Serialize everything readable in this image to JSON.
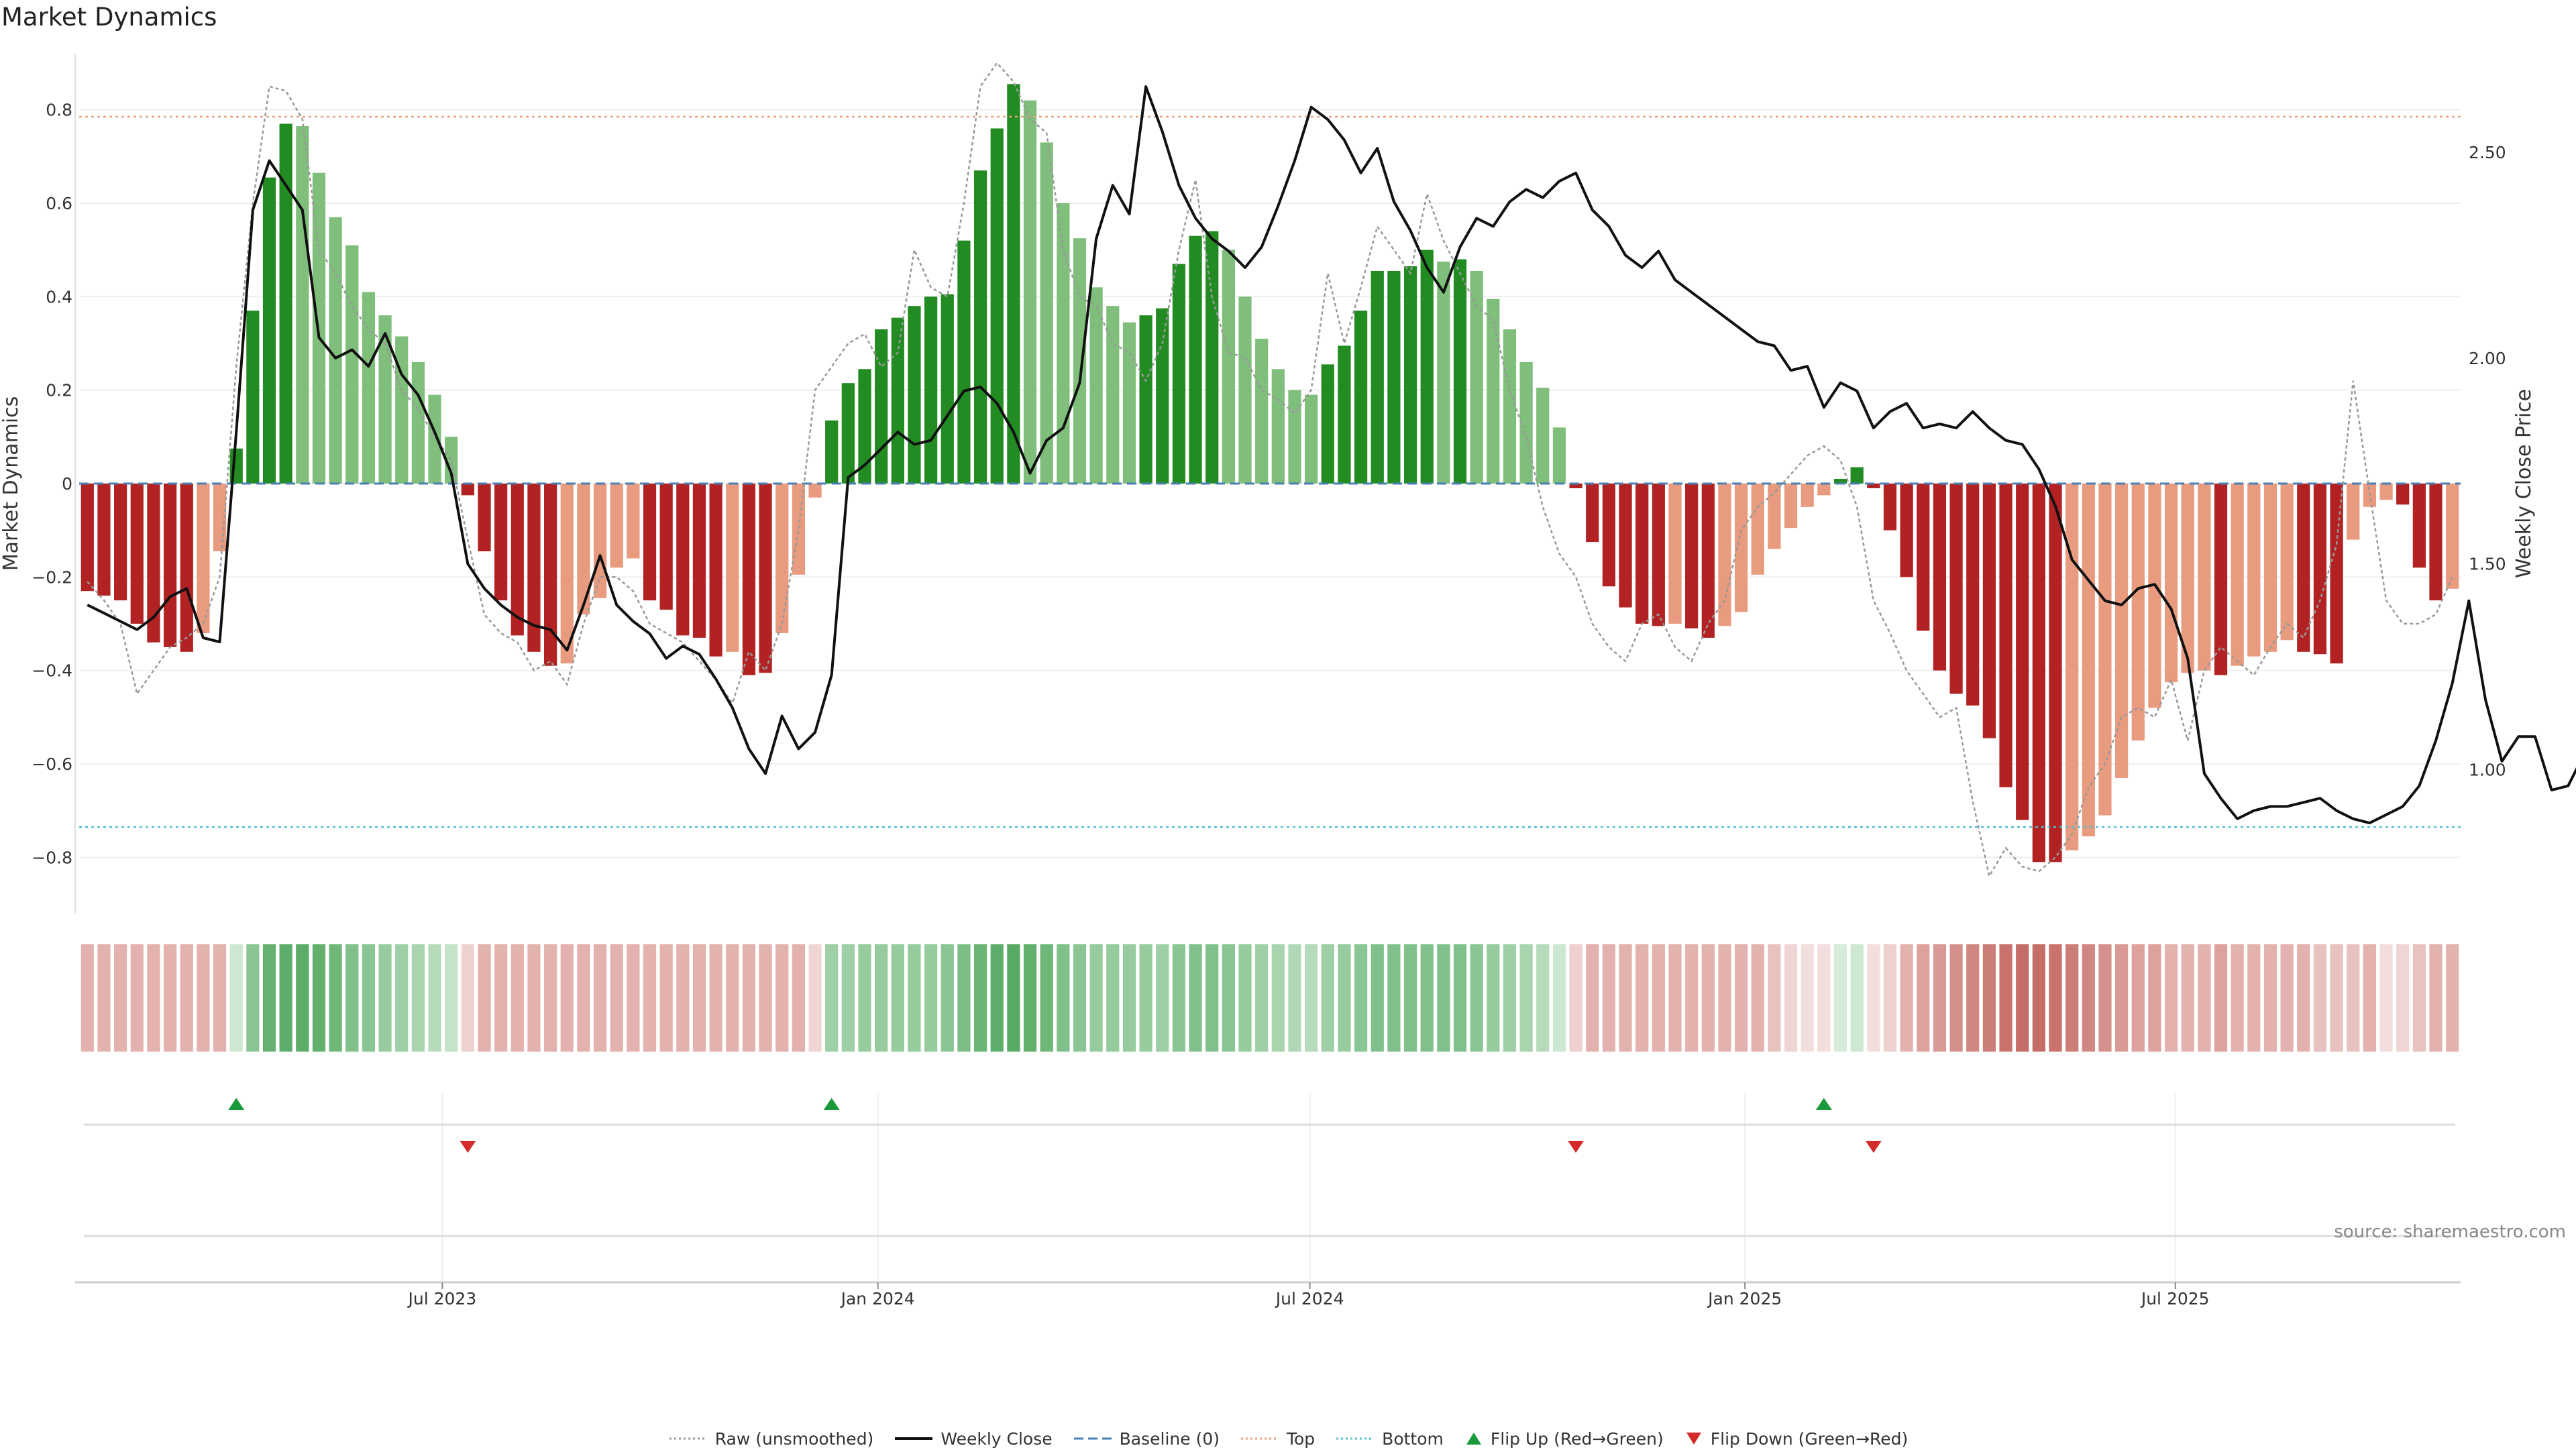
{
  "title": "Market Dynamics",
  "source": "source: sharemaestro.com",
  "colors": {
    "strong_green": "#228b22",
    "light_green": "#7fbf7b",
    "strong_red": "#b22222",
    "light_red": "#e89b7e",
    "raw_line": "#999999",
    "close_line": "#111111",
    "baseline": "#4a7fb5",
    "top_line": "#e8a07a",
    "bottom_line": "#4ec0d0",
    "flip_up": "#1a9a3a",
    "flip_down": "#d42a2a"
  },
  "legend": [
    {
      "label": "Raw (unsmoothed)",
      "icon": "dotted-line"
    },
    {
      "label": "Weekly Close",
      "icon": "solid-line"
    },
    {
      "label": "Baseline (0)",
      "icon": "dashed-line"
    },
    {
      "label": "Top",
      "icon": "dotted-line-orange"
    },
    {
      "label": "Bottom",
      "icon": "dotted-line-cyan"
    },
    {
      "label": "Flip Up (Red→Green)",
      "icon": "triangle-up"
    },
    {
      "label": "Flip Down (Green→Red)",
      "icon": "triangle-down"
    }
  ],
  "chart_data": {
    "type": "bar",
    "title": "Market Dynamics",
    "ylabel": "Market Dynamics",
    "y2label": "Weekly Close Price",
    "ylim": [
      -0.92,
      0.92
    ],
    "y2lim": [
      0.65,
      2.74
    ],
    "yticks": [
      "0.8",
      "0.6",
      "0.4",
      "0.2",
      "0",
      "−0.2",
      "−0.4",
      "−0.6",
      "−0.8"
    ],
    "y2ticks": [
      "2.50",
      "2.00",
      "1.50",
      "1.00"
    ],
    "xticks": [
      "Jul 2023",
      "Jan 2024",
      "Jul 2024",
      "Jan 2025",
      "Jul 2025"
    ],
    "top_level": 0.785,
    "bottom_level": -0.735,
    "baseline": 0,
    "grid": true,
    "legend_position": "bottom-center",
    "bars": [
      {
        "v": -0.23,
        "s": "strong"
      },
      {
        "v": -0.24,
        "s": "strong"
      },
      {
        "v": -0.25,
        "s": "strong"
      },
      {
        "v": -0.3,
        "s": "strong"
      },
      {
        "v": -0.34,
        "s": "strong"
      },
      {
        "v": -0.35,
        "s": "strong"
      },
      {
        "v": -0.36,
        "s": "strong"
      },
      {
        "v": -0.32,
        "s": "light"
      },
      {
        "v": -0.145,
        "s": "light"
      },
      {
        "v": 0.075,
        "s": "strong"
      },
      {
        "v": 0.37,
        "s": "strong"
      },
      {
        "v": 0.655,
        "s": "strong"
      },
      {
        "v": 0.77,
        "s": "strong"
      },
      {
        "v": 0.765,
        "s": "light"
      },
      {
        "v": 0.665,
        "s": "light"
      },
      {
        "v": 0.57,
        "s": "light"
      },
      {
        "v": 0.51,
        "s": "light"
      },
      {
        "v": 0.41,
        "s": "light"
      },
      {
        "v": 0.36,
        "s": "light"
      },
      {
        "v": 0.315,
        "s": "light"
      },
      {
        "v": 0.26,
        "s": "light"
      },
      {
        "v": 0.19,
        "s": "light"
      },
      {
        "v": 0.1,
        "s": "light"
      },
      {
        "v": -0.025,
        "s": "strong"
      },
      {
        "v": -0.145,
        "s": "strong"
      },
      {
        "v": -0.25,
        "s": "strong"
      },
      {
        "v": -0.325,
        "s": "strong"
      },
      {
        "v": -0.36,
        "s": "strong"
      },
      {
        "v": -0.39,
        "s": "strong"
      },
      {
        "v": -0.385,
        "s": "light"
      },
      {
        "v": -0.28,
        "s": "light"
      },
      {
        "v": -0.245,
        "s": "light"
      },
      {
        "v": -0.18,
        "s": "light"
      },
      {
        "v": -0.16,
        "s": "light"
      },
      {
        "v": -0.25,
        "s": "strong"
      },
      {
        "v": -0.27,
        "s": "strong"
      },
      {
        "v": -0.325,
        "s": "strong"
      },
      {
        "v": -0.33,
        "s": "strong"
      },
      {
        "v": -0.37,
        "s": "strong"
      },
      {
        "v": -0.36,
        "s": "light"
      },
      {
        "v": -0.41,
        "s": "strong"
      },
      {
        "v": -0.405,
        "s": "strong"
      },
      {
        "v": -0.32,
        "s": "light"
      },
      {
        "v": -0.195,
        "s": "light"
      },
      {
        "v": -0.03,
        "s": "light"
      },
      {
        "v": 0.135,
        "s": "strong"
      },
      {
        "v": 0.215,
        "s": "strong"
      },
      {
        "v": 0.245,
        "s": "strong"
      },
      {
        "v": 0.33,
        "s": "strong"
      },
      {
        "v": 0.355,
        "s": "strong"
      },
      {
        "v": 0.38,
        "s": "strong"
      },
      {
        "v": 0.4,
        "s": "strong"
      },
      {
        "v": 0.405,
        "s": "strong"
      },
      {
        "v": 0.52,
        "s": "strong"
      },
      {
        "v": 0.67,
        "s": "strong"
      },
      {
        "v": 0.76,
        "s": "strong"
      },
      {
        "v": 0.855,
        "s": "strong"
      },
      {
        "v": 0.82,
        "s": "light"
      },
      {
        "v": 0.73,
        "s": "light"
      },
      {
        "v": 0.6,
        "s": "light"
      },
      {
        "v": 0.525,
        "s": "light"
      },
      {
        "v": 0.42,
        "s": "light"
      },
      {
        "v": 0.38,
        "s": "light"
      },
      {
        "v": 0.345,
        "s": "light"
      },
      {
        "v": 0.36,
        "s": "strong"
      },
      {
        "v": 0.375,
        "s": "strong"
      },
      {
        "v": 0.47,
        "s": "strong"
      },
      {
        "v": 0.53,
        "s": "strong"
      },
      {
        "v": 0.54,
        "s": "strong"
      },
      {
        "v": 0.5,
        "s": "light"
      },
      {
        "v": 0.4,
        "s": "light"
      },
      {
        "v": 0.31,
        "s": "light"
      },
      {
        "v": 0.245,
        "s": "light"
      },
      {
        "v": 0.2,
        "s": "light"
      },
      {
        "v": 0.19,
        "s": "light"
      },
      {
        "v": 0.255,
        "s": "strong"
      },
      {
        "v": 0.295,
        "s": "strong"
      },
      {
        "v": 0.37,
        "s": "strong"
      },
      {
        "v": 0.455,
        "s": "strong"
      },
      {
        "v": 0.455,
        "s": "strong"
      },
      {
        "v": 0.465,
        "s": "strong"
      },
      {
        "v": 0.5,
        "s": "strong"
      },
      {
        "v": 0.475,
        "s": "light"
      },
      {
        "v": 0.48,
        "s": "strong"
      },
      {
        "v": 0.455,
        "s": "light"
      },
      {
        "v": 0.395,
        "s": "light"
      },
      {
        "v": 0.33,
        "s": "light"
      },
      {
        "v": 0.26,
        "s": "light"
      },
      {
        "v": 0.205,
        "s": "light"
      },
      {
        "v": 0.12,
        "s": "light"
      },
      {
        "v": -0.01,
        "s": "strong"
      },
      {
        "v": -0.125,
        "s": "strong"
      },
      {
        "v": -0.22,
        "s": "strong"
      },
      {
        "v": -0.265,
        "s": "strong"
      },
      {
        "v": -0.3,
        "s": "strong"
      },
      {
        "v": -0.305,
        "s": "strong"
      },
      {
        "v": -0.3,
        "s": "light"
      },
      {
        "v": -0.31,
        "s": "strong"
      },
      {
        "v": -0.33,
        "s": "strong"
      },
      {
        "v": -0.305,
        "s": "light"
      },
      {
        "v": -0.275,
        "s": "light"
      },
      {
        "v": -0.195,
        "s": "light"
      },
      {
        "v": -0.14,
        "s": "light"
      },
      {
        "v": -0.095,
        "s": "light"
      },
      {
        "v": -0.05,
        "s": "light"
      },
      {
        "v": -0.025,
        "s": "light"
      },
      {
        "v": 0.01,
        "s": "strong"
      },
      {
        "v": 0.035,
        "s": "strong"
      },
      {
        "v": -0.01,
        "s": "strong"
      },
      {
        "v": -0.1,
        "s": "strong"
      },
      {
        "v": -0.2,
        "s": "strong"
      },
      {
        "v": -0.315,
        "s": "strong"
      },
      {
        "v": -0.4,
        "s": "strong"
      },
      {
        "v": -0.45,
        "s": "strong"
      },
      {
        "v": -0.475,
        "s": "strong"
      },
      {
        "v": -0.545,
        "s": "strong"
      },
      {
        "v": -0.65,
        "s": "strong"
      },
      {
        "v": -0.72,
        "s": "strong"
      },
      {
        "v": -0.81,
        "s": "strong"
      },
      {
        "v": -0.81,
        "s": "strong"
      },
      {
        "v": -0.785,
        "s": "light"
      },
      {
        "v": -0.755,
        "s": "light"
      },
      {
        "v": -0.71,
        "s": "light"
      },
      {
        "v": -0.63,
        "s": "light"
      },
      {
        "v": -0.55,
        "s": "light"
      },
      {
        "v": -0.48,
        "s": "light"
      },
      {
        "v": -0.425,
        "s": "light"
      },
      {
        "v": -0.405,
        "s": "light"
      },
      {
        "v": -0.4,
        "s": "light"
      },
      {
        "v": -0.41,
        "s": "strong"
      },
      {
        "v": -0.39,
        "s": "light"
      },
      {
        "v": -0.37,
        "s": "light"
      },
      {
        "v": -0.36,
        "s": "light"
      },
      {
        "v": -0.335,
        "s": "light"
      },
      {
        "v": -0.36,
        "s": "strong"
      },
      {
        "v": -0.365,
        "s": "strong"
      },
      {
        "v": -0.385,
        "s": "strong"
      },
      {
        "v": -0.12,
        "s": "light"
      },
      {
        "v": -0.05,
        "s": "light"
      },
      {
        "v": -0.035,
        "s": "light"
      },
      {
        "v": -0.045,
        "s": "strong"
      },
      {
        "v": -0.18,
        "s": "strong"
      },
      {
        "v": -0.25,
        "s": "strong"
      },
      {
        "v": -0.225,
        "s": "light"
      }
    ],
    "raw": [
      -0.21,
      -0.25,
      -0.3,
      -0.45,
      -0.4,
      -0.35,
      -0.33,
      -0.3,
      -0.2,
      0.25,
      0.6,
      0.85,
      0.84,
      0.78,
      0.5,
      0.45,
      0.38,
      0.33,
      0.3,
      0.2,
      0.16,
      0.1,
      0.05,
      -0.12,
      -0.28,
      -0.32,
      -0.34,
      -0.4,
      -0.38,
      -0.43,
      -0.3,
      -0.2,
      -0.2,
      -0.23,
      -0.3,
      -0.32,
      -0.34,
      -0.38,
      -0.42,
      -0.47,
      -0.36,
      -0.4,
      -0.3,
      -0.1,
      0.2,
      0.25,
      0.3,
      0.32,
      0.25,
      0.28,
      0.5,
      0.42,
      0.4,
      0.6,
      0.85,
      0.9,
      0.86,
      0.78,
      0.75,
      0.5,
      0.4,
      0.38,
      0.3,
      0.28,
      0.22,
      0.3,
      0.5,
      0.65,
      0.4,
      0.28,
      0.27,
      0.2,
      0.18,
      0.15,
      0.2,
      0.45,
      0.3,
      0.42,
      0.55,
      0.5,
      0.45,
      0.62,
      0.52,
      0.45,
      0.38,
      0.35,
      0.2,
      0.1,
      -0.05,
      -0.15,
      -0.2,
      -0.3,
      -0.35,
      -0.38,
      -0.3,
      -0.28,
      -0.35,
      -0.38,
      -0.3,
      -0.25,
      -0.1,
      -0.05,
      -0.02,
      0.02,
      0.06,
      0.08,
      0.05,
      -0.05,
      -0.25,
      -0.32,
      -0.4,
      -0.45,
      -0.5,
      -0.48,
      -0.68,
      -0.84,
      -0.78,
      -0.82,
      -0.83,
      -0.8,
      -0.75,
      -0.65,
      -0.6,
      -0.5,
      -0.48,
      -0.5,
      -0.42,
      -0.55,
      -0.4,
      -0.35,
      -0.38,
      -0.41,
      -0.35,
      -0.3,
      -0.33,
      -0.25,
      -0.13,
      0.22,
      -0.02,
      -0.25,
      -0.3,
      -0.3,
      -0.28,
      -0.2
    ],
    "close": [
      1.4,
      1.38,
      1.36,
      1.34,
      1.37,
      1.42,
      1.44,
      1.32,
      1.31,
      1.82,
      2.36,
      2.48,
      2.42,
      2.36,
      2.05,
      2.0,
      2.02,
      1.98,
      2.06,
      1.96,
      1.91,
      1.82,
      1.72,
      1.5,
      1.44,
      1.4,
      1.37,
      1.35,
      1.34,
      1.29,
      1.4,
      1.52,
      1.4,
      1.36,
      1.33,
      1.27,
      1.3,
      1.28,
      1.22,
      1.15,
      1.05,
      0.99,
      1.13,
      1.05,
      1.09,
      1.23,
      1.71,
      1.74,
      1.78,
      1.82,
      1.79,
      1.8,
      1.86,
      1.92,
      1.93,
      1.89,
      1.82,
      1.72,
      1.8,
      1.83,
      1.94,
      2.29,
      2.42,
      2.35,
      2.66,
      2.55,
      2.42,
      2.34,
      2.29,
      2.26,
      2.22,
      2.27,
      2.37,
      2.48,
      2.61,
      2.58,
      2.53,
      2.45,
      2.51,
      2.38,
      2.31,
      2.22,
      2.16,
      2.27,
      2.34,
      2.32,
      2.38,
      2.41,
      2.39,
      2.43,
      2.45,
      2.36,
      2.32,
      2.25,
      2.22,
      2.26,
      2.19,
      2.16,
      2.13,
      2.1,
      2.07,
      2.04,
      2.03,
      1.97,
      1.98,
      1.88,
      1.94,
      1.92,
      1.83,
      1.87,
      1.89,
      1.83,
      1.84,
      1.83,
      1.87,
      1.83,
      1.8,
      1.79,
      1.73,
      1.64,
      1.51,
      1.46,
      1.41,
      1.4,
      1.44,
      1.45,
      1.39,
      1.27,
      0.99,
      0.93,
      0.88,
      0.9,
      0.91,
      0.91,
      0.92,
      0.93,
      0.9,
      0.88,
      0.87,
      0.89,
      0.91,
      0.96,
      1.07,
      1.21,
      1.41,
      1.17,
      1.02,
      1.08,
      1.08,
      0.95,
      0.96,
      1.04
    ],
    "strip": [
      "#e3b2ae",
      "#e3b2ae",
      "#e3b2ae",
      "#e3b2ae",
      "#e3b2ae",
      "#e3b2ae",
      "#e3b2ae",
      "#e3b2ae",
      "#e3b2ae",
      "#cde7d0",
      "#8ac594",
      "#67b170",
      "#5dae6a",
      "#5aac67",
      "#62b06b",
      "#6fb778",
      "#80c08a",
      "#8ac594",
      "#95cb9d",
      "#9ecfa6",
      "#a8d4ae",
      "#b6dbbb",
      "#c5e3c9",
      "#edd2d0",
      "#e3b2ae",
      "#e3b2ae",
      "#e3b2ae",
      "#e3b2ae",
      "#e3b2ae",
      "#e3b2ae",
      "#e3b2ae",
      "#e3b2ae",
      "#e3b2ae",
      "#e3b2ae",
      "#e3b2ae",
      "#e3b2ae",
      "#e3b2ae",
      "#e3b2ae",
      "#e3b2ae",
      "#e3b2ae",
      "#e3b2ae",
      "#e3b2ae",
      "#e3b2ae",
      "#e3b2ae",
      "#efd6d4",
      "#9ecfa6",
      "#9ecfa6",
      "#95cb9d",
      "#95cb9d",
      "#95cb9d",
      "#95cb9d",
      "#95cb9d",
      "#8ac594",
      "#7cbe86",
      "#6bb574",
      "#5dae6a",
      "#58ab64",
      "#62b06b",
      "#6fb778",
      "#80c08a",
      "#8ac594",
      "#95cb9d",
      "#95cb9d",
      "#95cb9d",
      "#95cb9d",
      "#9ecfa6",
      "#8ac594",
      "#80c08a",
      "#80c08a",
      "#8ac594",
      "#95cb9d",
      "#9ecfa6",
      "#a8d4ae",
      "#b0d8b6",
      "#b6dbbb",
      "#9ecfa6",
      "#95cb9d",
      "#8ac594",
      "#80c08a",
      "#80c08a",
      "#80c08a",
      "#80c08a",
      "#80c08a",
      "#80c08a",
      "#8ac594",
      "#95cb9d",
      "#9ecfa6",
      "#a8d4ae",
      "#b6dbbb",
      "#cde7d0",
      "#eed0ce",
      "#e3b2ae",
      "#e3b2ae",
      "#e3b2ae",
      "#e3b2ae",
      "#e3b2ae",
      "#e3b2ae",
      "#e3b2ae",
      "#e3b2ae",
      "#e3b2ae",
      "#e3b2ae",
      "#e3b2ae",
      "#e8c2bf",
      "#efd6d4",
      "#f2dfdd",
      "#f2dfdd",
      "#d6ebd9",
      "#cde7d0",
      "#f2dfdd",
      "#eed0ce",
      "#e3b2ae",
      "#dda29d",
      "#d99a95",
      "#d4918b",
      "#d08781",
      "#cb7d77",
      "#c9736c",
      "#c56e67",
      "#c56e67",
      "#c9736c",
      "#cb7d77",
      "#d08781",
      "#d4918b",
      "#d99a95",
      "#dda29d",
      "#dda29d",
      "#e3b2ae",
      "#e3b2ae",
      "#e3b2ae",
      "#dda29d",
      "#e3b2ae",
      "#e3b2ae",
      "#e3b2ae",
      "#e3b2ae",
      "#e3b2ae",
      "#e8c2bf",
      "#e8c2bf",
      "#e8c2bf",
      "#e3b2ae",
      "#f2dfdd",
      "#efd6d4",
      "#e8c2bf",
      "#e3b2ae",
      "#e3b2ae"
    ],
    "flip_up_index": [
      9,
      45,
      105
    ],
    "flip_down_index": [
      23,
      90,
      108
    ]
  }
}
